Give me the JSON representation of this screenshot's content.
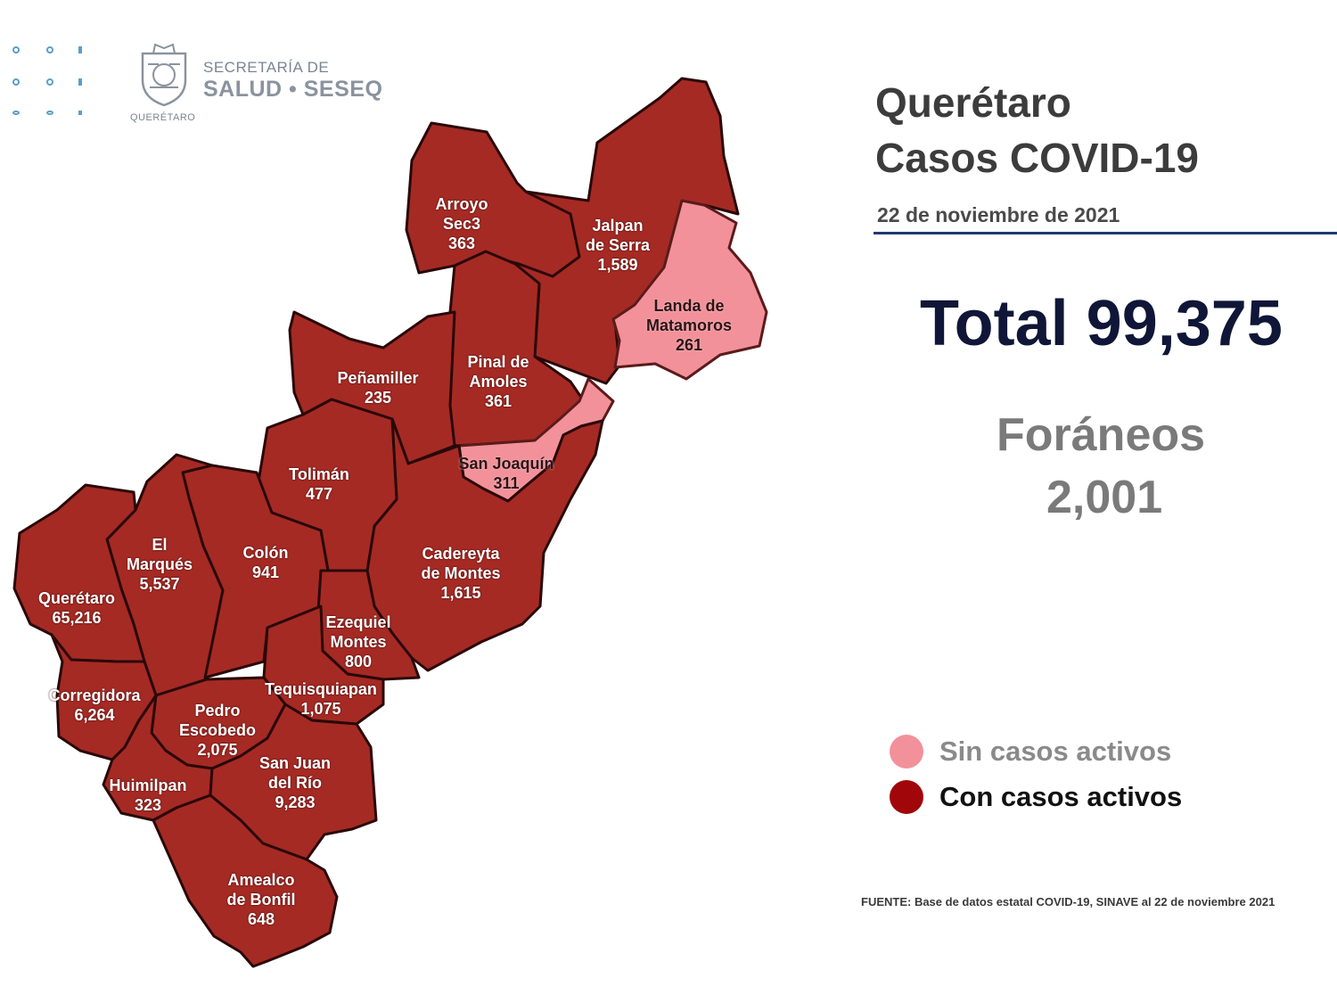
{
  "header": {
    "org_line1": "SECRETARÍA DE",
    "org_line2": "SALUD • SESEQ",
    "org_small": "QUERÉTARO"
  },
  "title": {
    "line1": "Querétaro",
    "line2": "Casos COVID-19",
    "date": "22 de noviembre de 2021"
  },
  "totals": {
    "total_label": "Total 99,375",
    "foraneos_label": "Foráneos",
    "foraneos_value": "2,001"
  },
  "legend": {
    "no_active": "Sin casos activos",
    "active": "Con casos activos",
    "no_active_color": "#f2919a",
    "active_color": "#a0060a"
  },
  "source": "FUENTE: Base de datos estatal COVID-19, SINAVE al 22 de noviembre 2021",
  "municipalities": [
    {
      "name": "Arroyo\nSec3",
      "cases": "363",
      "active": true
    },
    {
      "name": "Jalpan\nde Serra",
      "cases": "1,589",
      "active": true
    },
    {
      "name": "Landa de\nMatamoros",
      "cases": "261",
      "active": false
    },
    {
      "name": "Pinal de\nAmoles",
      "cases": "361",
      "active": true
    },
    {
      "name": "Peñamiller",
      "cases": "235",
      "active": true
    },
    {
      "name": "San Joaquín",
      "cases": "311",
      "active": false
    },
    {
      "name": "Tolimán",
      "cases": "477",
      "active": true
    },
    {
      "name": "El\nMarqués",
      "cases": "5,537",
      "active": true
    },
    {
      "name": "Colón",
      "cases": "941",
      "active": true
    },
    {
      "name": "Cadereyta\nde Montes",
      "cases": "1,615",
      "active": true
    },
    {
      "name": "Querétaro",
      "cases": "65,216",
      "active": true
    },
    {
      "name": "Ezequiel\nMontes",
      "cases": "800",
      "active": true
    },
    {
      "name": "Corregidora",
      "cases": "6,264",
      "active": true
    },
    {
      "name": "Pedro\nEscobedo",
      "cases": "2,075",
      "active": true
    },
    {
      "name": "Tequisquiapan",
      "cases": "1,075",
      "active": true
    },
    {
      "name": "San Juan\ndel Río",
      "cases": "9,283",
      "active": true
    },
    {
      "name": "Huimilpan",
      "cases": "323",
      "active": true
    },
    {
      "name": "Amealco\nde Bonfil",
      "cases": "648",
      "active": true
    }
  ]
}
